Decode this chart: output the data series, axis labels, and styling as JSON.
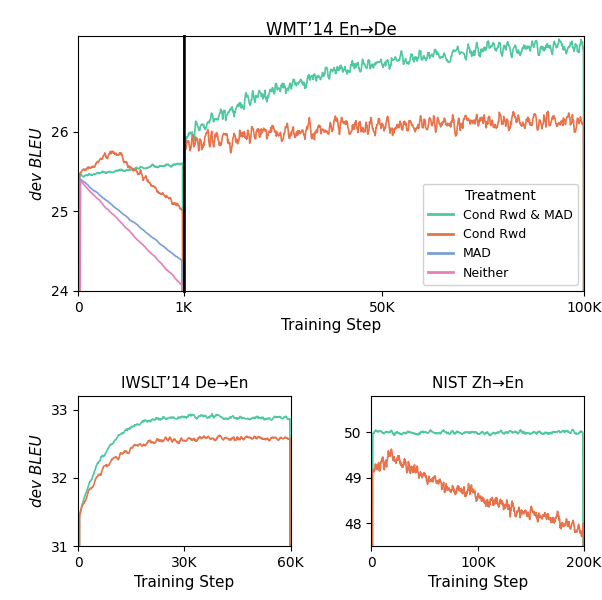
{
  "colors": {
    "cond_rwd_mad": "#4DC8A0",
    "cond_rwd": "#E8724A",
    "mad": "#7B9FD4",
    "neither": "#E87FB4"
  },
  "legend_labels": [
    "Cond Rwd & MAD",
    "Cond Rwd",
    "MAD",
    "Neither"
  ],
  "wmt_title": "WMT’14 En→De",
  "iwslt_title": "IWSLT’14 De→En",
  "nist_title": "NIST Zh→En",
  "ylabel": "dev BLEU",
  "xlabel": "Training Step",
  "treatment_label": "Treatment"
}
